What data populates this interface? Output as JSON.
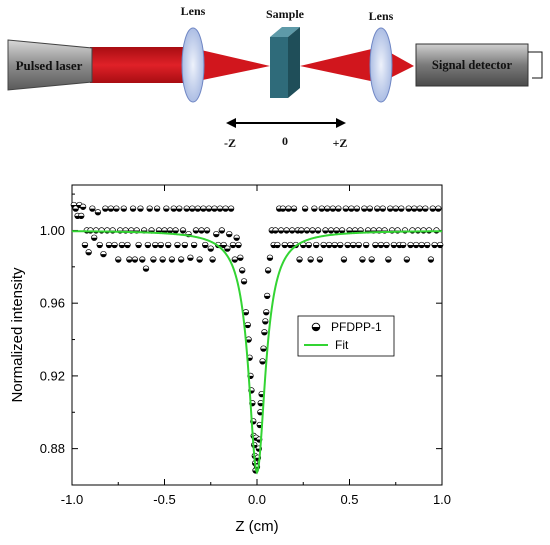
{
  "setup": {
    "laser_label": "Pulsed laser",
    "lens_left_label": "Lens",
    "sample_label": "Sample",
    "lens_right_label": "Lens",
    "detector_label": "Signal detector",
    "axis_minus": "-Z",
    "axis_zero": "0",
    "axis_plus": "+Z"
  },
  "colors": {
    "beam": "#c8181e",
    "laser_body": "#8c8c8c",
    "lens": "#b8c8ea",
    "sample": "#2f6b7a",
    "detector": "#7a7a7a",
    "fit": "#33d433"
  },
  "chart_data": {
    "type": "scatter",
    "xlabel": "Z (cm)",
    "ylabel": "Normalized intensity",
    "xlim": [
      -1.0,
      1.0
    ],
    "ylim": [
      0.86,
      1.025
    ],
    "xticks": [
      "-1.0",
      "-0.5",
      "0.0",
      "0.5",
      "1.0"
    ],
    "yticks": [
      "0.88",
      "0.92",
      "0.96",
      "1.00"
    ],
    "grid": false,
    "legend_position": "center-right",
    "series": [
      {
        "name": "PFDPP-1",
        "marker": "half-filled-circle",
        "points": [
          [
            -0.99,
            1.014
          ],
          [
            -0.98,
            1.012
          ],
          [
            -0.97,
            1.008
          ],
          [
            -0.96,
            1.014
          ],
          [
            -0.95,
            1.008
          ],
          [
            -0.94,
            1.013
          ],
          [
            -0.93,
            0.992
          ],
          [
            -0.92,
            1.0
          ],
          [
            -0.91,
            0.988
          ],
          [
            -0.9,
            1.0
          ],
          [
            -0.89,
            1.012
          ],
          [
            -0.88,
            0.996
          ],
          [
            -0.87,
            1.0
          ],
          [
            -0.86,
            1.01
          ],
          [
            -0.85,
            0.992
          ],
          [
            -0.84,
            1.0
          ],
          [
            -0.83,
            0.987
          ],
          [
            -0.82,
            1.012
          ],
          [
            -0.81,
            1.0
          ],
          [
            -0.8,
            0.992
          ],
          [
            -0.79,
            1.012
          ],
          [
            -0.78,
            1.0
          ],
          [
            -0.77,
            0.992
          ],
          [
            -0.76,
            1.012
          ],
          [
            -0.75,
            0.984
          ],
          [
            -0.74,
            1.0
          ],
          [
            -0.73,
            0.992
          ],
          [
            -0.72,
            1.012
          ],
          [
            -0.71,
            1.0
          ],
          [
            -0.7,
            0.992
          ],
          [
            -0.69,
            0.984
          ],
          [
            -0.68,
            1.0
          ],
          [
            -0.67,
            1.012
          ],
          [
            -0.66,
            0.984
          ],
          [
            -0.65,
            1.0
          ],
          [
            -0.64,
            0.992
          ],
          [
            -0.63,
            1.012
          ],
          [
            -0.62,
            0.984
          ],
          [
            -0.61,
            1.0
          ],
          [
            -0.6,
            0.979
          ],
          [
            -0.59,
            0.992
          ],
          [
            -0.58,
            1.012
          ],
          [
            -0.57,
            1.0
          ],
          [
            -0.56,
            0.984
          ],
          [
            -0.55,
            0.992
          ],
          [
            -0.54,
            1.012
          ],
          [
            -0.53,
            1.0
          ],
          [
            -0.52,
            0.992
          ],
          [
            -0.51,
            0.984
          ],
          [
            -0.5,
            1.0
          ],
          [
            -0.49,
            1.012
          ],
          [
            -0.48,
            0.992
          ],
          [
            -0.47,
            1.0
          ],
          [
            -0.46,
            0.984
          ],
          [
            -0.45,
            1.012
          ],
          [
            -0.44,
            1.0
          ],
          [
            -0.43,
            0.992
          ],
          [
            -0.42,
            1.012
          ],
          [
            -0.41,
            0.984
          ],
          [
            -0.4,
            1.0
          ],
          [
            -0.39,
            0.992
          ],
          [
            -0.38,
            1.012
          ],
          [
            -0.37,
            0.998
          ],
          [
            -0.36,
            0.985
          ],
          [
            -0.35,
            1.012
          ],
          [
            -0.34,
            0.992
          ],
          [
            -0.33,
            1.0
          ],
          [
            -0.32,
            1.012
          ],
          [
            -0.31,
            0.984
          ],
          [
            -0.3,
            1.0
          ],
          [
            -0.29,
            1.012
          ],
          [
            -0.28,
            0.992
          ],
          [
            -0.27,
            1.0
          ],
          [
            -0.26,
            1.012
          ],
          [
            -0.25,
            0.99
          ],
          [
            -0.24,
            0.984
          ],
          [
            -0.23,
            1.012
          ],
          [
            -0.22,
            0.998
          ],
          [
            -0.21,
            0.992
          ],
          [
            -0.2,
            1.012
          ],
          [
            -0.19,
            1.0
          ],
          [
            -0.18,
            0.992
          ],
          [
            -0.17,
            1.012
          ],
          [
            -0.16,
            0.99
          ],
          [
            -0.15,
            0.998
          ],
          [
            -0.14,
            1.012
          ],
          [
            -0.13,
            0.992
          ],
          [
            -0.12,
            0.984
          ],
          [
            -0.11,
            0.996
          ],
          [
            -0.1,
            0.992
          ],
          [
            -0.09,
            0.985
          ],
          [
            -0.08,
            0.978
          ],
          [
            -0.07,
            0.972
          ],
          [
            -0.06,
            0.955
          ],
          [
            -0.05,
            0.948
          ],
          [
            -0.045,
            0.94
          ],
          [
            -0.04,
            0.93
          ],
          [
            -0.035,
            0.92
          ],
          [
            -0.03,
            0.912
          ],
          [
            -0.025,
            0.905
          ],
          [
            -0.02,
            0.895
          ],
          [
            -0.018,
            0.887
          ],
          [
            -0.015,
            0.882
          ],
          [
            -0.012,
            0.876
          ],
          [
            -0.01,
            0.872
          ],
          [
            -0.008,
            0.868
          ],
          [
            -0.005,
            0.886
          ],
          [
            0.0,
            0.87
          ],
          [
            0.005,
            0.875
          ],
          [
            0.01,
            0.88
          ],
          [
            0.012,
            0.885
          ],
          [
            0.015,
            0.893
          ],
          [
            0.018,
            0.9
          ],
          [
            0.02,
            0.905
          ],
          [
            0.025,
            0.91
          ],
          [
            0.03,
            0.928
          ],
          [
            0.035,
            0.935
          ],
          [
            0.04,
            0.944
          ],
          [
            0.045,
            0.95
          ],
          [
            0.05,
            0.955
          ],
          [
            0.055,
            0.964
          ],
          [
            0.06,
            0.978
          ],
          [
            0.07,
            0.985
          ],
          [
            0.08,
            1.0
          ],
          [
            0.09,
            0.992
          ],
          [
            0.1,
            1.0
          ],
          [
            0.11,
            0.992
          ],
          [
            0.12,
            1.012
          ],
          [
            0.13,
            1.0
          ],
          [
            0.14,
            1.012
          ],
          [
            0.15,
            0.992
          ],
          [
            0.16,
            1.0
          ],
          [
            0.17,
            1.012
          ],
          [
            0.18,
            0.992
          ],
          [
            0.19,
            1.0
          ],
          [
            0.2,
            1.012
          ],
          [
            0.21,
            0.992
          ],
          [
            0.22,
            1.0
          ],
          [
            0.23,
            0.984
          ],
          [
            0.24,
            1.0
          ],
          [
            0.25,
            0.992
          ],
          [
            0.26,
            1.012
          ],
          [
            0.27,
            1.0
          ],
          [
            0.28,
            0.992
          ],
          [
            0.29,
            0.984
          ],
          [
            0.3,
            1.0
          ],
          [
            0.31,
            1.012
          ],
          [
            0.32,
            0.992
          ],
          [
            0.33,
            1.0
          ],
          [
            0.34,
            0.984
          ],
          [
            0.35,
            1.012
          ],
          [
            0.36,
            0.992
          ],
          [
            0.37,
            1.0
          ],
          [
            0.38,
            1.012
          ],
          [
            0.39,
            0.992
          ],
          [
            0.4,
            1.0
          ],
          [
            0.41,
            1.012
          ],
          [
            0.42,
            0.992
          ],
          [
            0.43,
            1.0
          ],
          [
            0.44,
            1.012
          ],
          [
            0.45,
            0.992
          ],
          [
            0.46,
            1.0
          ],
          [
            0.47,
            0.984
          ],
          [
            0.48,
            1.012
          ],
          [
            0.49,
            0.992
          ],
          [
            0.5,
            1.0
          ],
          [
            0.51,
            1.012
          ],
          [
            0.52,
            0.992
          ],
          [
            0.53,
            1.0
          ],
          [
            0.54,
            1.012
          ],
          [
            0.55,
            0.992
          ],
          [
            0.56,
            1.0
          ],
          [
            0.57,
            0.984
          ],
          [
            0.58,
            1.012
          ],
          [
            0.59,
            0.992
          ],
          [
            0.6,
            1.0
          ],
          [
            0.61,
            1.012
          ],
          [
            0.62,
            0.984
          ],
          [
            0.63,
            1.0
          ],
          [
            0.64,
            0.992
          ],
          [
            0.65,
            1.012
          ],
          [
            0.66,
            1.0
          ],
          [
            0.67,
            0.992
          ],
          [
            0.68,
            1.012
          ],
          [
            0.69,
            1.0
          ],
          [
            0.7,
            0.992
          ],
          [
            0.71,
            0.984
          ],
          [
            0.72,
            1.012
          ],
          [
            0.73,
            1.0
          ],
          [
            0.74,
            0.992
          ],
          [
            0.75,
            1.012
          ],
          [
            0.76,
            1.0
          ],
          [
            0.77,
            0.992
          ],
          [
            0.78,
            1.012
          ],
          [
            0.79,
            0.992
          ],
          [
            0.8,
            1.0
          ],
          [
            0.81,
            0.984
          ],
          [
            0.82,
            1.012
          ],
          [
            0.83,
            0.992
          ],
          [
            0.84,
            1.0
          ],
          [
            0.85,
            1.012
          ],
          [
            0.86,
            0.992
          ],
          [
            0.87,
            1.0
          ],
          [
            0.88,
            1.012
          ],
          [
            0.89,
            0.992
          ],
          [
            0.9,
            1.0
          ],
          [
            0.91,
            1.012
          ],
          [
            0.92,
            0.992
          ],
          [
            0.93,
            1.0
          ],
          [
            0.94,
            0.984
          ],
          [
            0.95,
            1.012
          ],
          [
            0.96,
            0.992
          ],
          [
            0.97,
            1.0
          ],
          [
            0.98,
            1.012
          ],
          [
            0.99,
            0.992
          ]
        ]
      },
      {
        "name": "Fit",
        "line": true,
        "color": "#33d433",
        "model": "lorentzian-dip",
        "baseline": 1.0,
        "depth": 0.133,
        "center": 0.0,
        "half_width": 0.055
      }
    ]
  }
}
